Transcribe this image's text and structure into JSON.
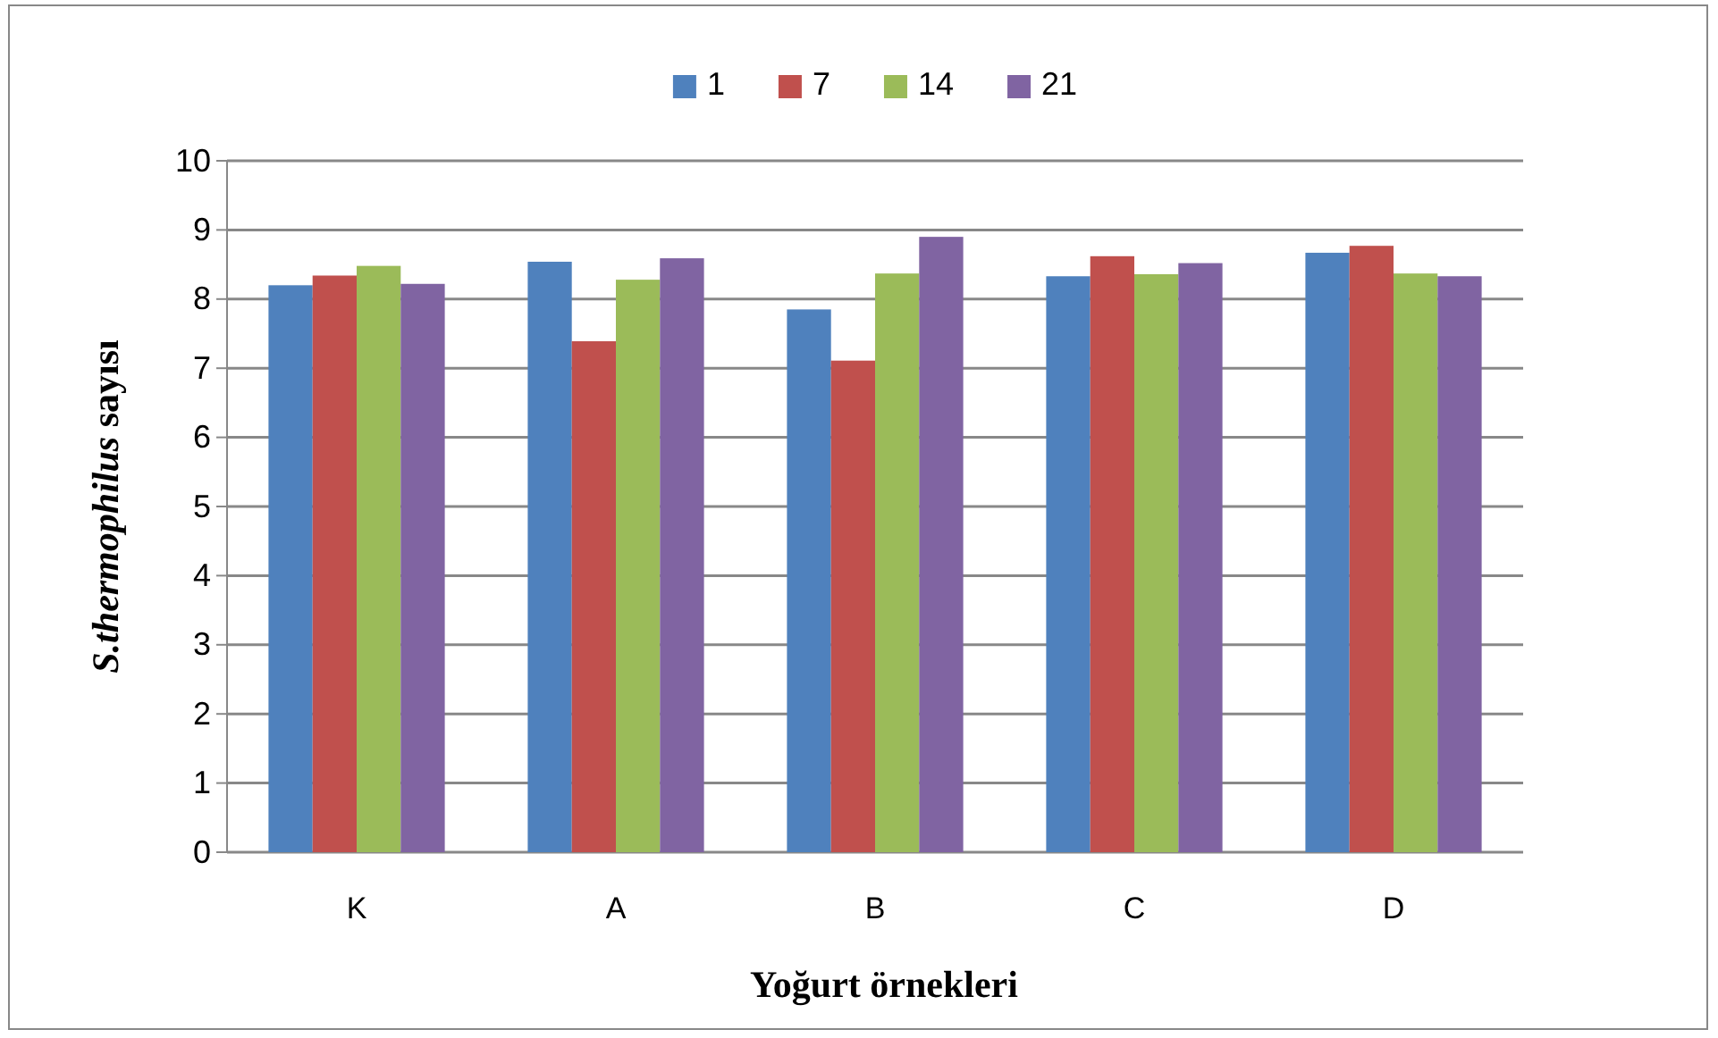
{
  "chart_data": {
    "type": "bar",
    "xlabel": "Yoğurt örnekleri",
    "ylabel": "S.thermophilus sayısı",
    "categories": [
      "K",
      "A",
      "B",
      "C",
      "D"
    ],
    "series": [
      {
        "name": "1",
        "color": "#4f81bd",
        "values": [
          8.2,
          8.54,
          7.85,
          8.33,
          8.67
        ]
      },
      {
        "name": "7",
        "color": "#c0504d",
        "values": [
          8.34,
          7.39,
          7.11,
          8.62,
          8.77
        ]
      },
      {
        "name": "14",
        "color": "#9bbb59",
        "values": [
          8.48,
          8.28,
          8.37,
          8.36,
          8.37
        ]
      },
      {
        "name": "21",
        "color": "#8064a2",
        "values": [
          8.22,
          8.59,
          8.9,
          8.52,
          8.33
        ]
      }
    ],
    "ylim": [
      0,
      10
    ],
    "yticks": [
      0,
      1,
      2,
      3,
      4,
      5,
      6,
      7,
      8,
      9,
      10
    ],
    "grid": "y",
    "legend": "top"
  }
}
